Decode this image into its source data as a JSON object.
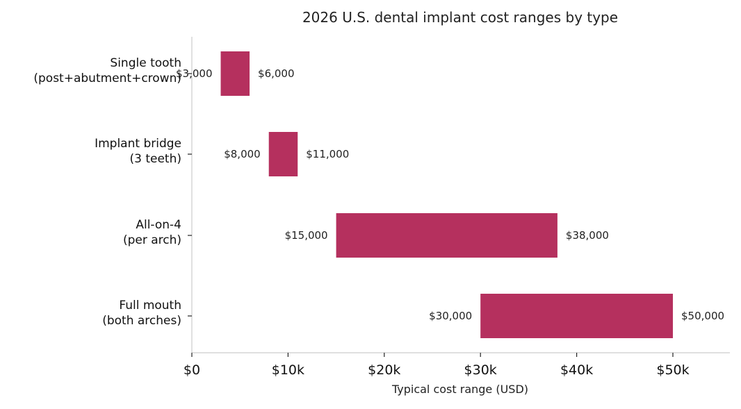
{
  "chart_data": {
    "type": "bar",
    "orientation": "horizontal",
    "style": "floating-range",
    "title": "2026 U.S. dental implant cost ranges by type",
    "xlabel": "Typical cost range (USD)",
    "ylabel": "",
    "xlim": [
      0,
      56000
    ],
    "grid": false,
    "bar_color": "#b5305e",
    "categories": [
      [
        "Single tooth",
        "(post+abutment+crown)"
      ],
      [
        "Implant bridge",
        "(3 teeth)"
      ],
      [
        "All-on-4",
        "(per arch)"
      ],
      [
        "Full mouth",
        "(both arches)"
      ]
    ],
    "low": [
      3000,
      8000,
      15000,
      30000
    ],
    "high": [
      6000,
      11000,
      38000,
      50000
    ],
    "low_labels": [
      "$3,000",
      "$8,000",
      "$15,000",
      "$30,000"
    ],
    "high_labels": [
      "$6,000",
      "$11,000",
      "$38,000",
      "$50,000"
    ],
    "x_ticks": [
      {
        "value": 0,
        "label": "$0"
      },
      {
        "value": 10000,
        "label": "$10k"
      },
      {
        "value": 20000,
        "label": "$20k"
      },
      {
        "value": 30000,
        "label": "$30k"
      },
      {
        "value": 40000,
        "label": "$40k"
      },
      {
        "value": 50000,
        "label": "$50k"
      }
    ]
  }
}
